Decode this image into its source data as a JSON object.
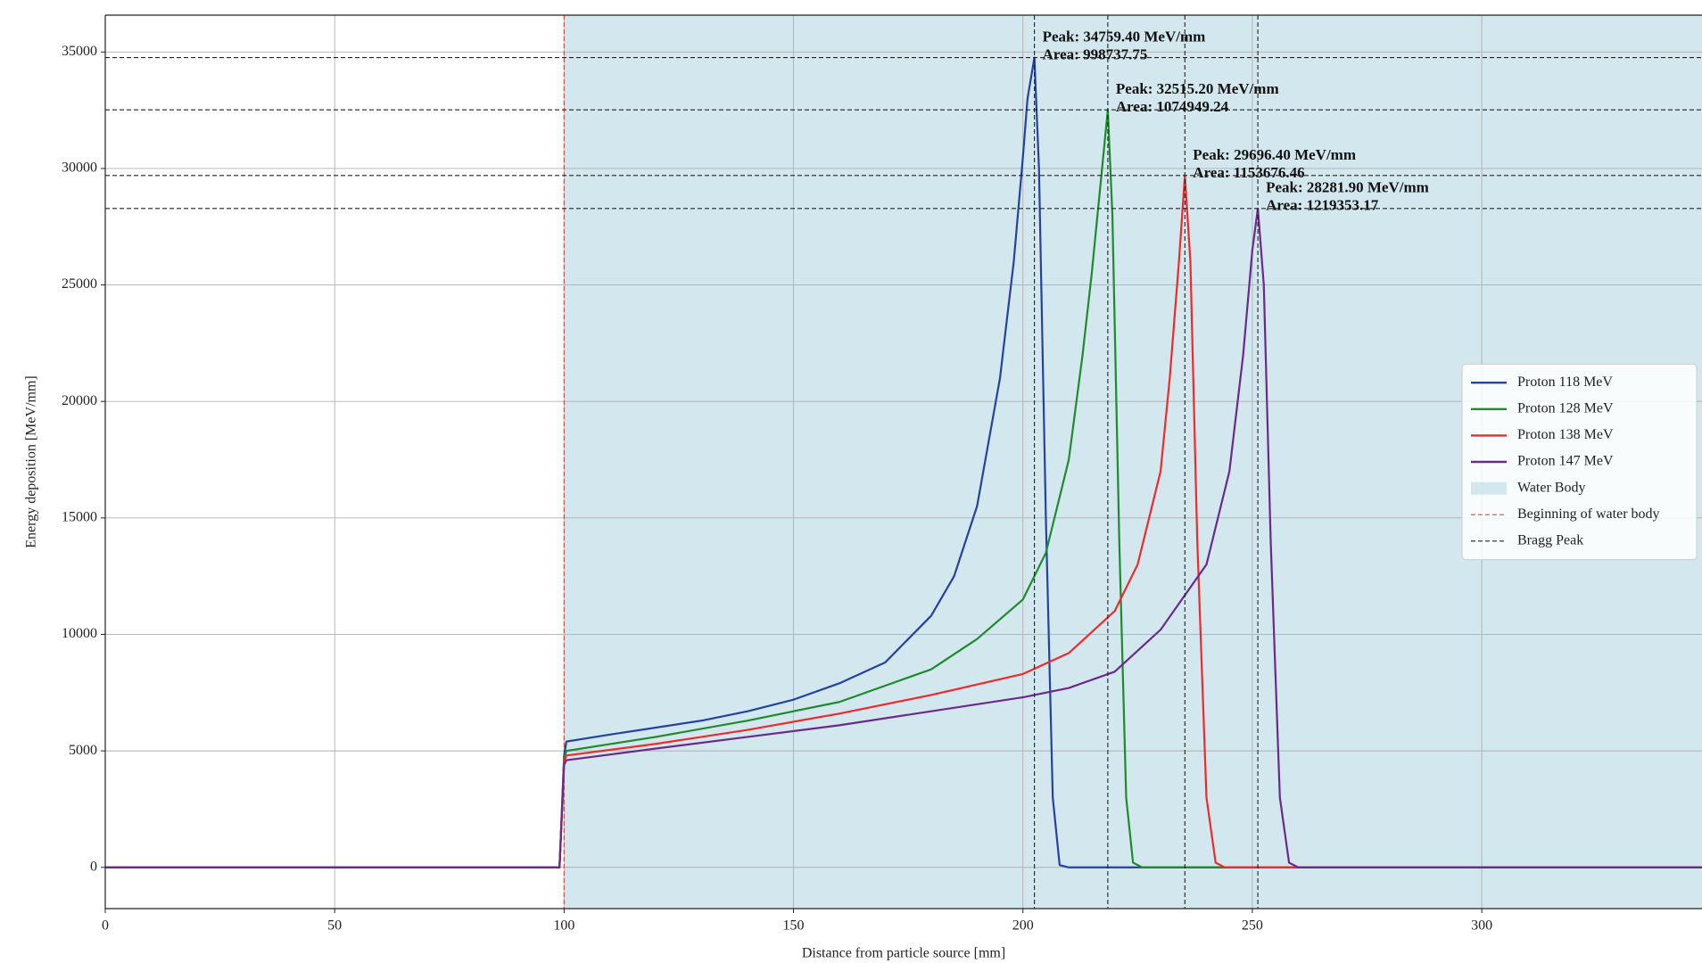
{
  "chart_data": {
    "type": "line",
    "xlabel": "Distance from particle source [mm]",
    "ylabel": "Energy deposition [MeV/mm]",
    "xlim": [
      0,
      348
    ],
    "ylim": [
      -1770,
      36580
    ],
    "xticks": [
      0,
      50,
      100,
      150,
      200,
      250,
      300
    ],
    "yticks": [
      0,
      5000,
      10000,
      15000,
      20000,
      25000,
      30000,
      35000
    ],
    "grid": true,
    "legend": "center right",
    "water_body": {
      "name": "Water Body",
      "start": 100,
      "color": "#d2e7ee"
    },
    "water_line": {
      "name": "Beginning of water body",
      "color": "#e8443a"
    },
    "bragg_line": {
      "name": "Bragg Peak",
      "color": "#222222"
    },
    "series": [
      {
        "name": "Proton 118 MeV",
        "color": "#2443a0",
        "annotation": [
          "Peak: 34759.40 MeV/mm",
          "Area: 998737.75"
        ],
        "x": [
          0,
          99,
          100,
          100.5,
          110,
          120,
          130,
          140,
          150,
          160,
          170,
          180,
          185,
          190,
          195,
          198,
          200,
          201,
          202.5,
          203.5,
          205,
          206.5,
          208,
          210,
          348
        ],
        "values": [
          0,
          0,
          4800,
          5400,
          5700,
          6000,
          6300,
          6700,
          7200,
          7900,
          8800,
          10800,
          12500,
          15500,
          21000,
          26000,
          30500,
          33000,
          34759.4,
          30000,
          15000,
          3000,
          100,
          0,
          0
        ]
      },
      {
        "name": "Proton 128 MeV",
        "color": "#1f8a2e",
        "annotation": [
          "Peak: 32515.20 MeV/mm",
          "Area: 1074949.24"
        ],
        "x": [
          0,
          99,
          100,
          100.5,
          120,
          140,
          160,
          180,
          190,
          200,
          205,
          210,
          213,
          215,
          217,
          218.5,
          219.5,
          221,
          222.5,
          224,
          226,
          348
        ],
        "values": [
          0,
          0,
          4600,
          5000,
          5600,
          6300,
          7100,
          8500,
          9800,
          11500,
          13500,
          17500,
          22000,
          25500,
          29500,
          32515.2,
          28000,
          14000,
          3000,
          200,
          0,
          0
        ]
      },
      {
        "name": "Proton 138 MeV",
        "color": "#ee2a2a",
        "annotation": [
          "Peak: 29696.40 MeV/mm",
          "Area: 1153676.46"
        ],
        "x": [
          0,
          99,
          100,
          100.5,
          120,
          140,
          160,
          180,
          200,
          210,
          220,
          225,
          230,
          232,
          234,
          235.3,
          236.5,
          238,
          240,
          242,
          244,
          348
        ],
        "values": [
          0,
          0,
          4500,
          4800,
          5300,
          5900,
          6600,
          7400,
          8300,
          9200,
          11000,
          13000,
          17000,
          21000,
          26000,
          29696.4,
          26000,
          14000,
          3000,
          200,
          0,
          0
        ]
      },
      {
        "name": "Proton 147 MeV",
        "color": "#6a2a8c",
        "annotation": [
          "Peak: 28281.90 MeV/mm",
          "Area: 1219353.17"
        ],
        "x": [
          0,
          99,
          100,
          100.5,
          120,
          140,
          160,
          180,
          200,
          210,
          220,
          230,
          240,
          245,
          248,
          250,
          251.2,
          252.5,
          254,
          256,
          258,
          260,
          348
        ],
        "values": [
          0,
          0,
          4400,
          4600,
          5100,
          5600,
          6100,
          6700,
          7300,
          7700,
          8400,
          10200,
          13000,
          17000,
          22000,
          26500,
          28281.9,
          25000,
          14000,
          3000,
          200,
          0,
          0
        ]
      }
    ]
  }
}
